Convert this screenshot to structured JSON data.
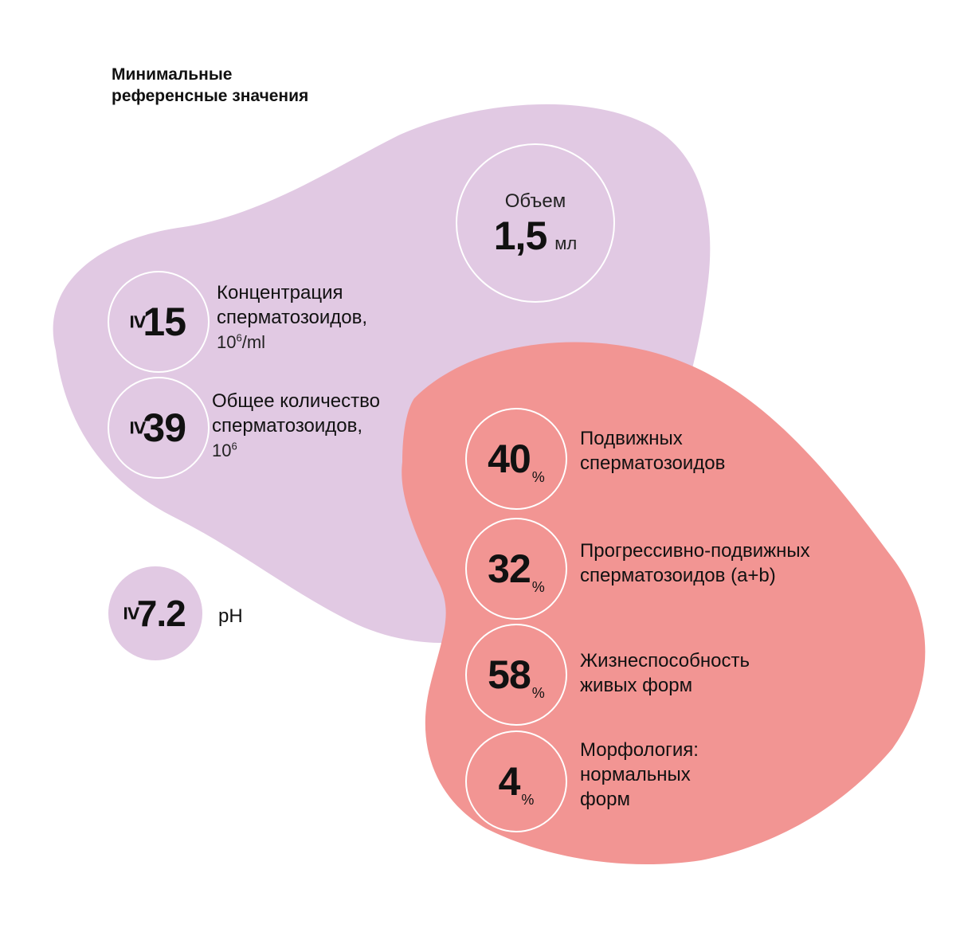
{
  "title": [
    "Минимальные",
    "референсные значения"
  ],
  "colors": {
    "lilac": "#e1c9e3",
    "coral": "#f29593",
    "ring": "#ffffff",
    "text": "#111111"
  },
  "volume": {
    "label": "Объем",
    "value": "1,5",
    "unit": "мл"
  },
  "concentration": {
    "sign": "≥",
    "value": "15",
    "label": [
      "Концентрация",
      "сперматозоидов,"
    ],
    "unit_base": "10",
    "unit_exp": "6",
    "unit_suffix": "/ml"
  },
  "total": {
    "sign": "≥",
    "value": "39",
    "label": [
      "Общее количество",
      "сперматозоидов,"
    ],
    "unit_base": "10",
    "unit_exp": "6"
  },
  "ph": {
    "sign": "≥",
    "value": "7.2",
    "label": "pH"
  },
  "motility": [
    {
      "value": "40",
      "unit": "%",
      "label": [
        "Подвижных",
        "сперматозоидов"
      ]
    },
    {
      "value": "32",
      "unit": "%",
      "label": [
        "Прогрессивно-подвижных",
        "сперматозоидов (a+b)"
      ]
    },
    {
      "value": "58",
      "unit": "%",
      "label": [
        "Жизнеспособность",
        "живых форм"
      ]
    },
    {
      "value": "4",
      "unit": "%",
      "label": [
        "Морфология:",
        "нормальных",
        "форм"
      ]
    }
  ]
}
